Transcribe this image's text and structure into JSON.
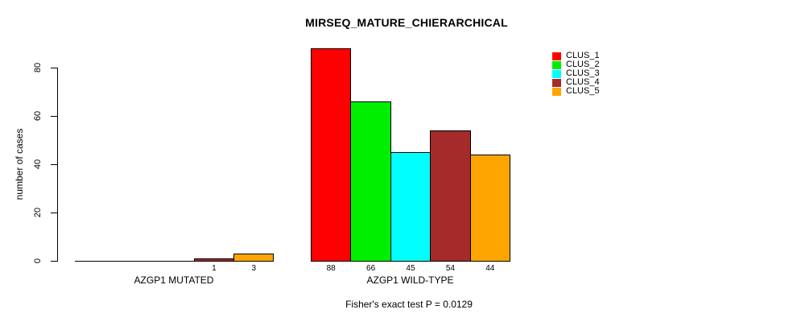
{
  "chart_data": {
    "type": "bar",
    "title": "MIRSEQ_MATURE_CHIERARCHICAL",
    "ylabel": "number of cases",
    "yticks": [
      0,
      20,
      40,
      60,
      80
    ],
    "ylim": [
      0,
      88
    ],
    "grid": false,
    "legend_position": "top-right",
    "clusters": [
      {
        "name": "CLUS_1",
        "color": "#FF0000"
      },
      {
        "name": "CLUS_2",
        "color": "#00EE00"
      },
      {
        "name": "CLUS_3",
        "color": "#00FFFF"
      },
      {
        "name": "CLUS_4",
        "color": "#A52A2A"
      },
      {
        "name": "CLUS_5",
        "color": "#FFA500"
      }
    ],
    "groups": [
      {
        "label": "AZGP1 MUTATED",
        "values": [
          0,
          0,
          0,
          1,
          3
        ]
      },
      {
        "label": "AZGP1 WILD-TYPE",
        "values": [
          88,
          66,
          45,
          54,
          44
        ]
      }
    ],
    "caption": "Fisher's exact test P = 0.0129"
  }
}
